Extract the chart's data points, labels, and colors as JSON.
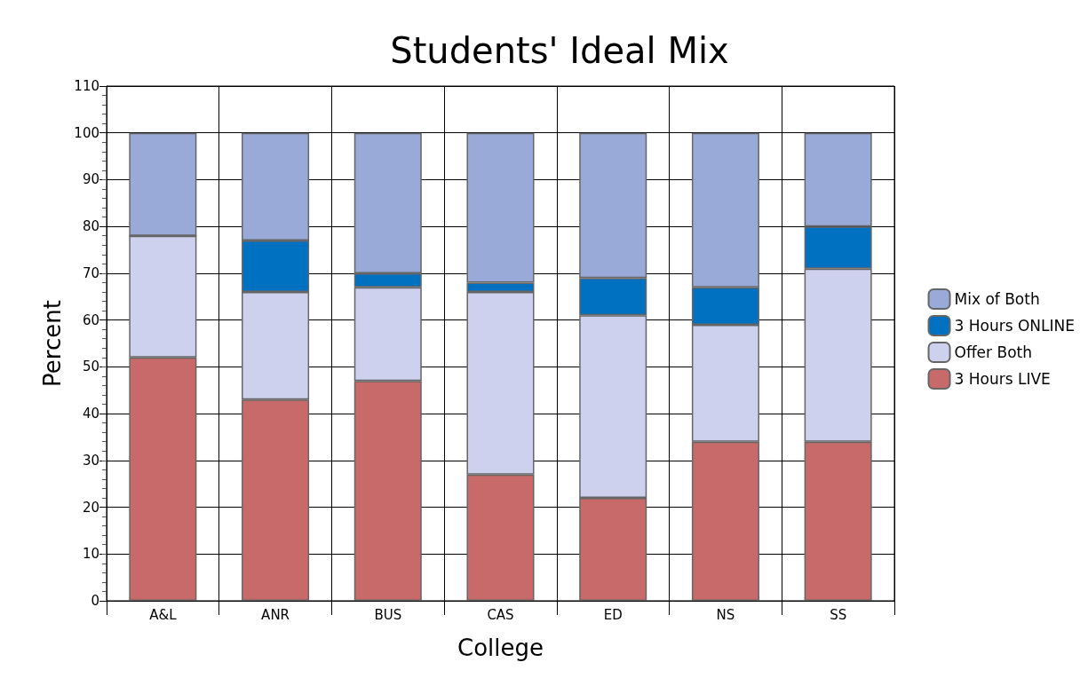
{
  "chart_data": {
    "type": "bar",
    "title": "Students' Ideal Mix",
    "xlabel": "College",
    "ylabel": "Percent",
    "categories": [
      "A&L",
      "ANR",
      "BUS",
      "CAS",
      "ED",
      "NS",
      "SS"
    ],
    "stacked": true,
    "series": [
      {
        "name": "3 Hours LIVE",
        "color": "#c86a6a",
        "values": [
          52,
          43,
          47,
          27,
          22,
          34,
          34
        ]
      },
      {
        "name": "Offer Both",
        "color": "#cdd1ee",
        "values": [
          26,
          23,
          20,
          39,
          39,
          25,
          37
        ]
      },
      {
        "name": "3 Hours ONLINE",
        "color": "#0071c1",
        "values": [
          0,
          11,
          3,
          2,
          8,
          8,
          9
        ]
      },
      {
        "name": "Mix of Both",
        "color": "#99a9d8",
        "values": [
          22,
          23,
          30,
          32,
          31,
          33,
          20
        ]
      }
    ],
    "ylim": [
      0,
      110
    ],
    "yticks": [
      0,
      10,
      20,
      30,
      40,
      50,
      60,
      70,
      80,
      90,
      100,
      110
    ],
    "grid": true,
    "legend": "right"
  }
}
